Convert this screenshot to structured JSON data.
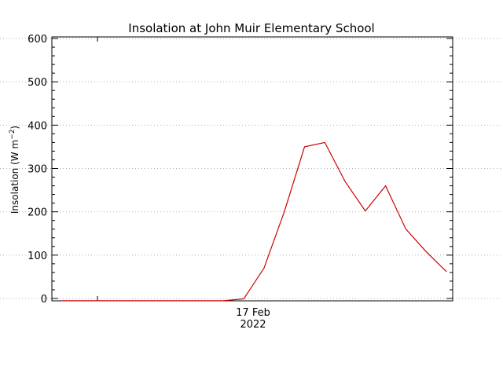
{
  "chart_data": {
    "type": "line",
    "title": "Insolation at John Muir Elementary School",
    "ylabel_main": "Insolation (W m",
    "ylabel_sup": "−2",
    "ylabel_end": ")",
    "xlabel": "",
    "ylim": [
      0,
      600
    ],
    "yticks": [
      0,
      100,
      200,
      300,
      400,
      500,
      600
    ],
    "x_tick": {
      "line1": "17 Feb",
      "line2": "2022"
    },
    "grid": true,
    "series": [
      {
        "color": "#cc0000",
        "values": [
          -5,
          -5,
          -5,
          -5,
          -5,
          -5,
          -5,
          -5,
          -5,
          -1,
          70,
          200,
          350,
          360,
          270,
          202,
          260,
          160,
          108,
          62
        ]
      }
    ]
  }
}
